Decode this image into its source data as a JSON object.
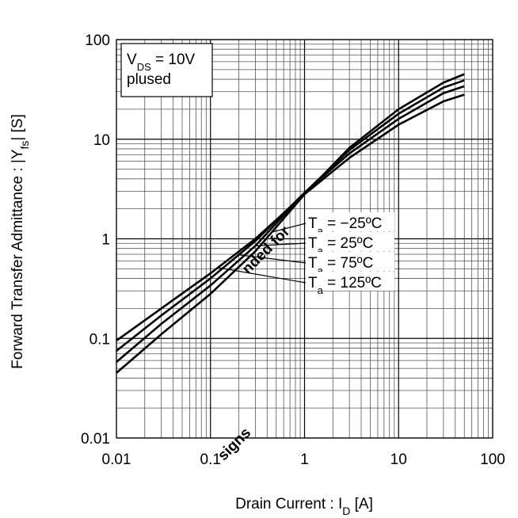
{
  "chart_data": {
    "type": "line",
    "y_title": [
      "Forward Transfer Admittance : |Y",
      "fs",
      "| [S]"
    ],
    "x_title": [
      "Drain Current : I",
      "D",
      " [A]"
    ],
    "annotation": [
      [
        "V",
        "DS",
        " = 10V"
      ],
      [
        "plused"
      ]
    ],
    "watermark": [
      "nded for",
      "signs"
    ],
    "x": [
      0.01,
      0.03,
      0.1,
      0.3,
      1,
      3,
      10,
      30,
      50
    ],
    "series": [
      {
        "name": [
          "T",
          "a",
          " = −25ºC"
        ],
        "color": "#000000",
        "values": [
          0.045,
          0.11,
          0.28,
          0.75,
          2.8,
          8.2,
          20,
          37,
          45
        ]
      },
      {
        "name": [
          "T",
          "a",
          " = 25ºC"
        ],
        "color": "#000000",
        "values": [
          0.058,
          0.14,
          0.34,
          0.85,
          2.9,
          7.8,
          18,
          33,
          39
        ]
      },
      {
        "name": [
          "T",
          "a",
          " = 75ºC"
        ],
        "color": "#000000",
        "values": [
          0.075,
          0.17,
          0.4,
          0.95,
          2.9,
          7.2,
          16,
          29,
          34
        ]
      },
      {
        "name": [
          "T",
          "a",
          " = 125ºC"
        ],
        "color": "#000000",
        "values": [
          0.095,
          0.2,
          0.45,
          1.0,
          2.8,
          6.5,
          14,
          24,
          28
        ]
      }
    ],
    "xlim": [
      0.01,
      100
    ],
    "ylim": [
      0.01,
      100
    ],
    "xticks": [
      0.01,
      0.1,
      1,
      10,
      100
    ],
    "yticks": [
      0.01,
      0.1,
      1,
      10,
      100
    ],
    "log_x": true,
    "log_y": true,
    "grid": true
  }
}
